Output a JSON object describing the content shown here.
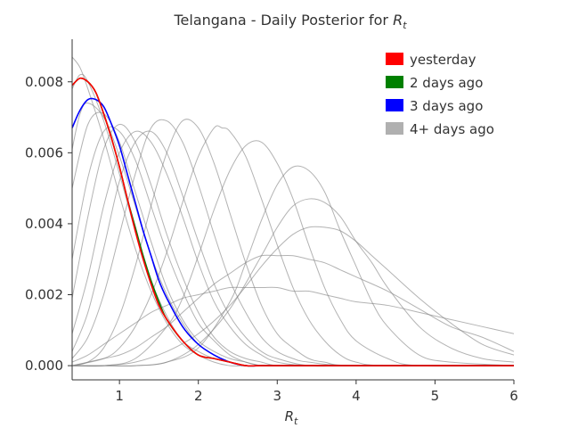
{
  "chart_data": {
    "type": "line",
    "title_prefix": "Telangana - Daily Posterior for ",
    "title_var": "R",
    "title_sub": "t",
    "xlabel_var": "R",
    "xlabel_sub": "t",
    "ylabel": "",
    "xlim": [
      0.4,
      6.0
    ],
    "ylim": [
      -0.0004,
      0.0092
    ],
    "x_ticks": [
      1,
      2,
      3,
      4,
      5,
      6
    ],
    "x_tick_labels": [
      "1",
      "2",
      "3",
      "4",
      "5",
      "6"
    ],
    "y_ticks": [
      0.0,
      0.002,
      0.004,
      0.006,
      0.008
    ],
    "y_tick_labels": [
      "0.000",
      "0.002",
      "0.004",
      "0.006",
      "0.008"
    ],
    "grid": false,
    "legend_position": "top-right",
    "legend": [
      {
        "label": "yesterday",
        "color": "#ff0000"
      },
      {
        "label": "2 days ago",
        "color": "#008000"
      },
      {
        "label": "3 days ago",
        "color": "#0000ff"
      },
      {
        "label": "4+ days ago",
        "color": "#b0b0b0"
      }
    ],
    "series": [
      {
        "name": "4+ days ago",
        "color": "#808080",
        "x": [
          0.4,
          0.6,
          0.8,
          1.0,
          1.2,
          1.4,
          1.6,
          1.8,
          2.0,
          2.2,
          2.4,
          2.6,
          2.8,
          3.0,
          3.2,
          3.4,
          3.6,
          3.8,
          4.0,
          4.4,
          4.8,
          5.2,
          5.6,
          6.0
        ],
        "y": [
          0.0001,
          0.0003,
          0.0006,
          0.0009,
          0.0012,
          0.0015,
          0.0017,
          0.0019,
          0.002,
          0.0021,
          0.0022,
          0.0022,
          0.0022,
          0.0022,
          0.0021,
          0.0021,
          0.002,
          0.0019,
          0.0018,
          0.0017,
          0.0015,
          0.0013,
          0.0011,
          0.0009
        ]
      },
      {
        "name": "4+ days ago",
        "color": "#808080",
        "x": [
          0.4,
          0.6,
          0.8,
          1.0,
          1.2,
          1.4,
          1.6,
          1.8,
          2.0,
          2.2,
          2.4,
          2.6,
          2.8,
          3.0,
          3.2,
          3.4,
          3.6,
          3.8,
          4.0,
          4.4,
          4.8,
          5.2,
          5.6,
          6.0
        ],
        "y": [
          0.0,
          0.0001,
          0.0002,
          0.0003,
          0.0005,
          0.0008,
          0.0011,
          0.0015,
          0.0019,
          0.0023,
          0.0026,
          0.0029,
          0.0031,
          0.0031,
          0.0031,
          0.003,
          0.0029,
          0.0027,
          0.0025,
          0.0021,
          0.0016,
          0.0011,
          0.0008,
          0.0004
        ]
      },
      {
        "name": "4+ days ago",
        "color": "#808080",
        "x": [
          0.4,
          0.8,
          1.2,
          1.6,
          2.0,
          2.4,
          2.8,
          3.0,
          3.2,
          3.4,
          3.6,
          3.8,
          4.0,
          4.2,
          4.4,
          4.8,
          5.2,
          5.6,
          6.0
        ],
        "y": [
          0.0,
          0.0,
          0.0001,
          0.0004,
          0.0009,
          0.0017,
          0.0028,
          0.0033,
          0.0037,
          0.0039,
          0.0039,
          0.0038,
          0.0035,
          0.0031,
          0.0027,
          0.0019,
          0.0012,
          0.0006,
          0.0003
        ]
      },
      {
        "name": "4+ days ago",
        "color": "#808080",
        "x": [
          0.4,
          0.8,
          1.2,
          1.6,
          2.0,
          2.4,
          2.8,
          3.0,
          3.2,
          3.4,
          3.6,
          3.8,
          4.0,
          4.2,
          4.4,
          4.8,
          5.2,
          5.6,
          6.0
        ],
        "y": [
          0.0,
          0.0,
          0.0,
          0.0001,
          0.0006,
          0.0016,
          0.0031,
          0.0039,
          0.0045,
          0.0047,
          0.0046,
          0.0042,
          0.0035,
          0.0029,
          0.0022,
          0.0011,
          0.0005,
          0.0002,
          0.0001
        ]
      },
      {
        "name": "4+ days ago",
        "color": "#808080",
        "x": [
          0.4,
          0.8,
          1.2,
          1.6,
          2.0,
          2.4,
          2.6,
          2.8,
          3.0,
          3.2,
          3.4,
          3.6,
          3.8,
          4.0,
          4.2,
          4.4,
          4.8,
          5.2,
          6.0
        ],
        "y": [
          0.0,
          0.0,
          0.0,
          0.0001,
          0.0005,
          0.0018,
          0.0029,
          0.0041,
          0.0051,
          0.0056,
          0.0055,
          0.0049,
          0.0038,
          0.0028,
          0.0018,
          0.0011,
          0.0003,
          0.0001,
          0.0
        ]
      },
      {
        "name": "4+ days ago",
        "color": "#808080",
        "x": [
          0.4,
          0.8,
          1.2,
          1.6,
          1.8,
          2.0,
          2.2,
          2.4,
          2.6,
          2.8,
          3.0,
          3.2,
          3.4,
          3.6,
          3.8,
          4.0,
          4.4,
          4.8,
          6.0
        ],
        "y": [
          0.0,
          0.0,
          0.0002,
          0.0011,
          0.0019,
          0.0031,
          0.0044,
          0.0055,
          0.0062,
          0.0063,
          0.0057,
          0.0047,
          0.0034,
          0.0022,
          0.0013,
          0.0007,
          0.0002,
          0.0,
          0.0
        ]
      },
      {
        "name": "4+ days ago",
        "color": "#808080",
        "x": [
          0.4,
          0.8,
          1.0,
          1.2,
          1.4,
          1.6,
          1.8,
          2.0,
          2.2,
          2.3,
          2.4,
          2.6,
          2.8,
          3.0,
          3.2,
          3.4,
          3.6,
          3.8,
          4.0,
          4.4,
          6.0
        ],
        "y": [
          0.0,
          0.0002,
          0.0005,
          0.0011,
          0.002,
          0.0032,
          0.0046,
          0.0059,
          0.0067,
          0.0067,
          0.0066,
          0.0059,
          0.0047,
          0.0034,
          0.0022,
          0.0013,
          0.0007,
          0.0003,
          0.0001,
          0.0,
          0.0
        ]
      },
      {
        "name": "4+ days ago",
        "color": "#808080",
        "x": [
          0.4,
          0.6,
          0.8,
          1.0,
          1.2,
          1.4,
          1.6,
          1.8,
          2.0,
          2.2,
          2.4,
          2.6,
          2.8,
          3.0,
          3.2,
          3.4,
          3.6,
          4.0,
          6.0
        ],
        "y": [
          0.0,
          0.0001,
          0.0005,
          0.0014,
          0.0028,
          0.0045,
          0.006,
          0.0069,
          0.0067,
          0.0057,
          0.0043,
          0.0029,
          0.0017,
          0.0009,
          0.0005,
          0.0002,
          0.0001,
          0.0,
          0.0
        ]
      },
      {
        "name": "4+ days ago",
        "color": "#808080",
        "x": [
          0.4,
          0.6,
          0.8,
          1.0,
          1.2,
          1.4,
          1.6,
          1.8,
          2.0,
          2.2,
          2.4,
          2.6,
          2.8,
          3.0,
          3.2,
          3.4,
          4.0,
          6.0
        ],
        "y": [
          0.0002,
          0.0008,
          0.002,
          0.0037,
          0.0054,
          0.0067,
          0.0069,
          0.0063,
          0.0051,
          0.0037,
          0.0024,
          0.0015,
          0.0008,
          0.0004,
          0.0002,
          0.0001,
          0.0,
          0.0
        ]
      },
      {
        "name": "4+ days ago",
        "color": "#808080",
        "x": [
          0.4,
          0.6,
          0.8,
          1.0,
          1.2,
          1.4,
          1.6,
          1.8,
          2.0,
          2.2,
          2.4,
          2.6,
          2.8,
          3.0,
          3.4,
          4.0,
          6.0
        ],
        "y": [
          0.0004,
          0.0015,
          0.0033,
          0.0052,
          0.0063,
          0.0066,
          0.006,
          0.0048,
          0.0035,
          0.0023,
          0.0014,
          0.0008,
          0.0004,
          0.0002,
          0.0,
          0.0,
          0.0
        ]
      },
      {
        "name": "4+ days ago",
        "color": "#808080",
        "x": [
          0.4,
          0.6,
          0.8,
          1.0,
          1.2,
          1.4,
          1.6,
          1.8,
          2.0,
          2.2,
          2.4,
          2.6,
          2.8,
          3.0,
          3.4,
          4.0,
          6.0
        ],
        "y": [
          0.0009,
          0.0025,
          0.0045,
          0.006,
          0.0066,
          0.0063,
          0.0054,
          0.0042,
          0.0029,
          0.0018,
          0.0011,
          0.0006,
          0.0003,
          0.0001,
          0.0,
          0.0,
          0.0
        ]
      },
      {
        "name": "4+ days ago",
        "color": "#808080",
        "x": [
          0.4,
          0.6,
          0.8,
          1.0,
          1.2,
          1.4,
          1.6,
          1.8,
          2.0,
          2.2,
          2.4,
          2.6,
          2.8,
          3.0,
          3.4,
          4.0,
          6.0
        ],
        "y": [
          0.0019,
          0.0042,
          0.0061,
          0.0068,
          0.0063,
          0.0051,
          0.0037,
          0.0025,
          0.0015,
          0.0008,
          0.0004,
          0.0002,
          0.0001,
          0.0,
          0.0,
          0.0,
          0.0
        ]
      },
      {
        "name": "4+ days ago",
        "color": "#808080",
        "x": [
          0.4,
          0.6,
          0.8,
          1.0,
          1.2,
          1.4,
          1.6,
          1.8,
          2.0,
          2.2,
          2.4,
          2.6,
          2.8,
          3.0,
          3.4,
          4.0,
          6.0
        ],
        "y": [
          0.003,
          0.0053,
          0.0066,
          0.0066,
          0.0058,
          0.0045,
          0.0032,
          0.0021,
          0.0012,
          0.0007,
          0.0003,
          0.0001,
          0.0,
          0.0,
          0.0,
          0.0,
          0.0
        ]
      },
      {
        "name": "4+ days ago",
        "color": "#808080",
        "x": [
          0.4,
          0.6,
          0.8,
          1.0,
          1.2,
          1.4,
          1.6,
          1.8,
          2.0,
          2.2,
          2.4,
          2.6,
          2.8,
          3.0,
          3.4,
          4.0,
          6.0
        ],
        "y": [
          0.005,
          0.0068,
          0.0071,
          0.0063,
          0.0049,
          0.0035,
          0.0022,
          0.0013,
          0.0007,
          0.0004,
          0.0002,
          0.0001,
          0.0,
          0.0,
          0.0,
          0.0,
          0.0
        ]
      },
      {
        "name": "4+ days ago",
        "color": "#808080",
        "x": [
          0.4,
          0.5,
          0.6,
          0.8,
          1.0,
          1.2,
          1.4,
          1.6,
          1.8,
          2.0,
          2.2,
          2.4,
          2.6,
          2.8,
          3.0,
          3.4,
          4.0,
          6.0
        ],
        "y": [
          0.0061,
          0.0071,
          0.0074,
          0.007,
          0.0059,
          0.0045,
          0.0031,
          0.002,
          0.0012,
          0.0006,
          0.0003,
          0.0001,
          0.0,
          0.0,
          0.0,
          0.0,
          0.0,
          0.0
        ]
      },
      {
        "name": "4+ days ago",
        "color": "#808080",
        "x": [
          0.4,
          0.5,
          0.6,
          0.8,
          1.0,
          1.2,
          1.4,
          1.6,
          1.8,
          2.0,
          2.2,
          2.4,
          2.6,
          2.8,
          3.0,
          3.4,
          4.0,
          6.0
        ],
        "y": [
          0.0078,
          0.0082,
          0.008,
          0.0069,
          0.0054,
          0.0038,
          0.0024,
          0.0014,
          0.0007,
          0.0004,
          0.0002,
          0.0001,
          0.0,
          0.0,
          0.0,
          0.0,
          0.0,
          0.0
        ]
      },
      {
        "name": "4+ days ago",
        "color": "#808080",
        "x": [
          0.4,
          0.5,
          0.6,
          0.8,
          1.0,
          1.2,
          1.4,
          1.6,
          1.8,
          2.0,
          2.2,
          2.4,
          2.6,
          2.8,
          3.0,
          3.4,
          4.0,
          6.0
        ],
        "y": [
          0.0087,
          0.0084,
          0.0078,
          0.0064,
          0.0048,
          0.0033,
          0.0021,
          0.0012,
          0.0006,
          0.0003,
          0.0001,
          0.0,
          0.0,
          0.0,
          0.0,
          0.0,
          0.0,
          0.0
        ]
      },
      {
        "name": "3 days ago",
        "color": "#0000ff",
        "x": [
          0.4,
          0.5,
          0.6,
          0.7,
          0.8,
          0.9,
          1.0,
          1.1,
          1.2,
          1.3,
          1.4,
          1.5,
          1.6,
          1.8,
          2.0,
          2.2,
          2.4,
          2.6,
          2.8,
          3.0,
          3.4,
          4.0,
          6.0
        ],
        "y": [
          0.0067,
          0.0072,
          0.0075,
          0.0075,
          0.0073,
          0.0068,
          0.0062,
          0.0054,
          0.0046,
          0.0038,
          0.0031,
          0.0024,
          0.0019,
          0.0011,
          0.0006,
          0.0003,
          0.0001,
          0.0,
          0.0,
          0.0,
          0.0,
          0.0,
          0.0
        ]
      },
      {
        "name": "2 days ago",
        "color": "#008000",
        "x": [
          0.4,
          0.5,
          0.6,
          0.7,
          0.8,
          0.9,
          1.0,
          1.1,
          1.2,
          1.3,
          1.4,
          1.5,
          1.6,
          1.8,
          2.0,
          2.2,
          2.4,
          2.6,
          2.8,
          3.0,
          3.4,
          4.0,
          6.0
        ],
        "y": [
          0.0079,
          0.0081,
          0.008,
          0.0077,
          0.0071,
          0.0064,
          0.0056,
          0.0047,
          0.0039,
          0.0031,
          0.0024,
          0.0018,
          0.0013,
          0.0007,
          0.0003,
          0.0002,
          0.0001,
          0.0,
          0.0,
          0.0,
          0.0,
          0.0,
          0.0
        ]
      },
      {
        "name": "yesterday",
        "color": "#ff0000",
        "x": [
          0.4,
          0.5,
          0.6,
          0.7,
          0.8,
          0.9,
          1.0,
          1.1,
          1.2,
          1.3,
          1.4,
          1.5,
          1.6,
          1.8,
          2.0,
          2.2,
          2.4,
          2.6,
          2.8,
          3.0,
          3.4,
          4.0,
          6.0
        ],
        "y": [
          0.0079,
          0.0081,
          0.008,
          0.0077,
          0.0071,
          0.0064,
          0.0056,
          0.0047,
          0.0038,
          0.003,
          0.0023,
          0.0017,
          0.0013,
          0.0007,
          0.0003,
          0.0002,
          0.0001,
          0.0,
          0.0,
          0.0,
          0.0,
          0.0,
          0.0
        ]
      }
    ]
  }
}
